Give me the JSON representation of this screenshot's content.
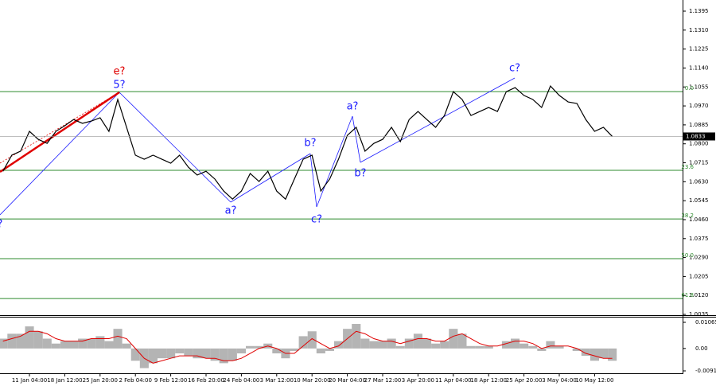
{
  "chart_data": [
    {
      "type": "line",
      "values": [
        1.0677,
        1.0749,
        1.0767,
        1.0856,
        1.082,
        1.0802,
        1.0856,
        1.0881,
        1.0909,
        1.0892,
        1.0902,
        1.0917,
        1.0856,
        1.0999,
        1.0874,
        1.0749,
        1.0731,
        1.0749,
        1.0731,
        1.0713,
        1.0749,
        1.0695,
        1.066,
        1.0677,
        1.0642,
        1.0588,
        1.0552,
        1.0588,
        1.0667,
        1.0631,
        1.0677,
        1.0588,
        1.0552,
        1.0642,
        1.0731,
        1.0749,
        1.0588,
        1.0642,
        1.0731,
        1.0838,
        1.0874,
        1.0767,
        1.0802,
        1.082,
        1.0874,
        1.081,
        1.0909,
        1.0945,
        1.0909,
        1.0874,
        1.0927,
        1.1034,
        1.0999,
        1.0927,
        1.0945,
        1.0963,
        1.0945,
        1.1034,
        1.1052,
        1.1017,
        1.0999,
        1.0963,
        1.1059,
        1.1017,
        1.0988,
        1.0981,
        1.0909,
        1.0856,
        1.0874,
        1.0833
      ],
      "color": "#000000",
      "ylim": [
        1.0028,
        1.1445
      ],
      "yticks": [
        1.1395,
        {
          "value": 1.131,
          "label": "1.1310"
        },
        1.1225,
        {
          "value": 1.114,
          "label": "1.1140"
        },
        1.1055,
        {
          "value": 1.097,
          "label": "1.0970"
        },
        1.0885,
        {
          "value": 1.08,
          "label": "1.0800"
        },
        1.0715,
        {
          "value": 1.063,
          "label": "1.0630"
        },
        1.0545,
        {
          "value": 1.046,
          "label": "1.0460"
        },
        1.0375,
        {
          "value": 1.029,
          "label": "1.0290"
        },
        1.0205,
        {
          "value": 1.012,
          "label": "1.0120"
        },
        1.0035
      ],
      "levels": [
        {
          "value": 1.1034,
          "label": "0.0"
        },
        {
          "value": 1.0681,
          "label": "23.6"
        },
        {
          "value": 1.0463,
          "label": "38.2"
        },
        {
          "value": 1.0285,
          "label": "50.0"
        },
        {
          "value": 1.0106,
          "label": "61.8"
        }
      ],
      "level_color": "#2e8b2e",
      "current_price": {
        "value": 1.0833,
        "label": "1.0833"
      },
      "annotations": [
        {
          "text": "e?",
          "color": "#e00000"
        },
        {
          "text": "5?",
          "color": "#1a1aff"
        },
        {
          "text": "a?",
          "color": "#1a1aff"
        },
        {
          "text": "b?",
          "color": "#1a1aff"
        },
        {
          "text": "c?",
          "color": "#1a1aff"
        },
        {
          "text": "a?",
          "color": "#1a1aff"
        },
        {
          "text": "b?",
          "color": "#1a1aff"
        },
        {
          "text": "c?",
          "color": "#1a1aff"
        },
        {
          "text": "?",
          "color": "#1a1aff"
        }
      ]
    },
    {
      "type": "bar",
      "categories": [
        null,
        null,
        null,
        "11 Jan 04:00",
        null,
        null,
        null,
        "18 Jan 12:00",
        null,
        null,
        null,
        "25 Jan 20:00",
        null,
        null,
        null,
        "2 Feb 04:00",
        null,
        null,
        null,
        "9 Feb 12:00",
        null,
        null,
        null,
        "16 Feb 20:00",
        null,
        null,
        null,
        "24 Feb 04:00",
        null,
        null,
        null,
        "3 Mar 12:00",
        null,
        null,
        null,
        "10 Mar 20:00",
        null,
        null,
        null,
        "20 Mar 04:00",
        null,
        null,
        null,
        "27 Mar 12:00",
        null,
        null,
        null,
        "3 Apr 20:00",
        null,
        null,
        null,
        "11 Apr 04:00",
        null,
        null,
        null,
        "18 Apr 12:00",
        null,
        null,
        null,
        "25 Apr 20:00",
        null,
        null,
        null,
        "3 May 04:00",
        null,
        null,
        null,
        "10 May 12:00",
        null,
        null
      ],
      "values": [
        0.004,
        0.006,
        0.006,
        0.009,
        0.007,
        0.004,
        0.002,
        0.003,
        0.003,
        0.004,
        0.004,
        0.005,
        0.003,
        0.008,
        0.002,
        -0.005,
        -0.008,
        -0.006,
        -0.004,
        -0.004,
        -0.002,
        -0.003,
        -0.004,
        -0.004,
        -0.005,
        -0.006,
        -0.005,
        -0.002,
        0.001,
        0.001,
        0.002,
        -0.002,
        -0.004,
        -0.001,
        0.005,
        0.007,
        -0.002,
        -0.001,
        0.003,
        0.008,
        0.01,
        0.004,
        0.003,
        0.003,
        0.004,
        0.001,
        0.004,
        0.006,
        0.004,
        0.002,
        0.003,
        0.008,
        0.006,
        0.001,
        0.001,
        0.001,
        0.0,
        0.003,
        0.004,
        0.002,
        0.001,
        -0.001,
        0.003,
        0.001,
        0.0,
        -0.001,
        -0.003,
        -0.005,
        -0.004,
        -0.005
      ],
      "color": "#b4b4b4",
      "signal_values": [
        0.003,
        0.004,
        0.005,
        0.007,
        0.007,
        0.006,
        0.004,
        0.003,
        0.003,
        0.003,
        0.004,
        0.004,
        0.004,
        0.005,
        0.004,
        0.0,
        -0.004,
        -0.006,
        -0.005,
        -0.004,
        -0.003,
        -0.003,
        -0.003,
        -0.004,
        -0.004,
        -0.005,
        -0.005,
        -0.004,
        -0.002,
        0.0,
        0.001,
        0.0,
        -0.002,
        -0.002,
        0.001,
        0.004,
        0.002,
        0.0,
        0.001,
        0.004,
        0.007,
        0.006,
        0.004,
        0.003,
        0.003,
        0.002,
        0.003,
        0.004,
        0.004,
        0.003,
        0.003,
        0.005,
        0.006,
        0.004,
        0.002,
        0.001,
        0.001,
        0.002,
        0.003,
        0.003,
        0.002,
        0.0,
        0.001,
        0.001,
        0.001,
        0.0,
        -0.002,
        -0.003,
        -0.004,
        -0.004
      ],
      "signal_color": "#e00000",
      "ylim": [
        -0.0101,
        0.0126
      ],
      "yticks": [
        0.01065,
        {
          "value": 0,
          "label": "0.00"
        },
        -0.00913
      ]
    }
  ]
}
